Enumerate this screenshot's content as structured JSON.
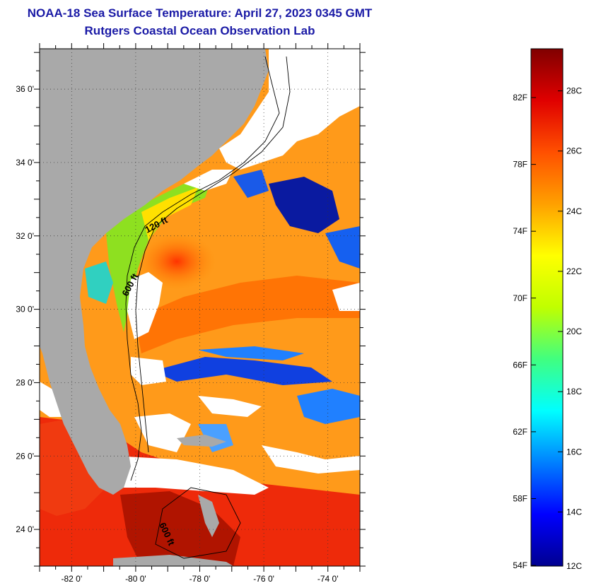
{
  "title": {
    "line1": "NOAA-18 Sea Surface Temperature:  April 27, 2023 0345 GMT",
    "line2": "Rutgers Coastal Ocean Observation Lab"
  },
  "map": {
    "lat_range": [
      23,
      37.1
    ],
    "lon_range": [
      -83,
      -73
    ],
    "lat_ticks": [
      {
        "value": 24,
        "label": "24 0'"
      },
      {
        "value": 26,
        "label": "26 0'"
      },
      {
        "value": 28,
        "label": "28 0'"
      },
      {
        "value": 30,
        "label": "30 0'"
      },
      {
        "value": 32,
        "label": "32 0'"
      },
      {
        "value": 34,
        "label": "34 0'"
      },
      {
        "value": 36,
        "label": "36 0'"
      }
    ],
    "lon_ticks": [
      {
        "value": -82,
        "label": "-82 0'"
      },
      {
        "value": -80,
        "label": "-80 0'"
      },
      {
        "value": -78,
        "label": "-78 0'"
      },
      {
        "value": -76,
        "label": "-76 0'"
      },
      {
        "value": -74,
        "label": "-74 0'"
      }
    ],
    "contour_labels": [
      {
        "text": "120 ft",
        "id": "contour-120ft"
      },
      {
        "text": "600 ft",
        "id": "contour-600ft"
      },
      {
        "text": "600 ft",
        "id": "contour-600ft-south"
      }
    ],
    "colors": {
      "land": "#a9a9a9",
      "cloud": "#ffffff"
    }
  },
  "colorbar": {
    "range_c": [
      12.2,
      29.4
    ],
    "fahrenheit_ticks": [
      {
        "value": 54,
        "label": "54F"
      },
      {
        "value": 58,
        "label": "58F"
      },
      {
        "value": 62,
        "label": "62F"
      },
      {
        "value": 66,
        "label": "66F"
      },
      {
        "value": 70,
        "label": "70F"
      },
      {
        "value": 74,
        "label": "74F"
      },
      {
        "value": 78,
        "label": "78F"
      },
      {
        "value": 82,
        "label": "82F"
      }
    ],
    "celsius_ticks": [
      {
        "value": 12,
        "label": "12C"
      },
      {
        "value": 14,
        "label": "14C"
      },
      {
        "value": 16,
        "label": "16C"
      },
      {
        "value": 18,
        "label": "18C"
      },
      {
        "value": 20,
        "label": "20C"
      },
      {
        "value": 22,
        "label": "22C"
      },
      {
        "value": 24,
        "label": "24C"
      },
      {
        "value": 26,
        "label": "26C"
      },
      {
        "value": 28,
        "label": "28C"
      }
    ],
    "gradient_stops": [
      "#000090",
      "#0000ff",
      "#0080ff",
      "#00ffff",
      "#40ff80",
      "#c0ff00",
      "#ffff00",
      "#ffa000",
      "#ff5000",
      "#e00000",
      "#800000"
    ]
  }
}
